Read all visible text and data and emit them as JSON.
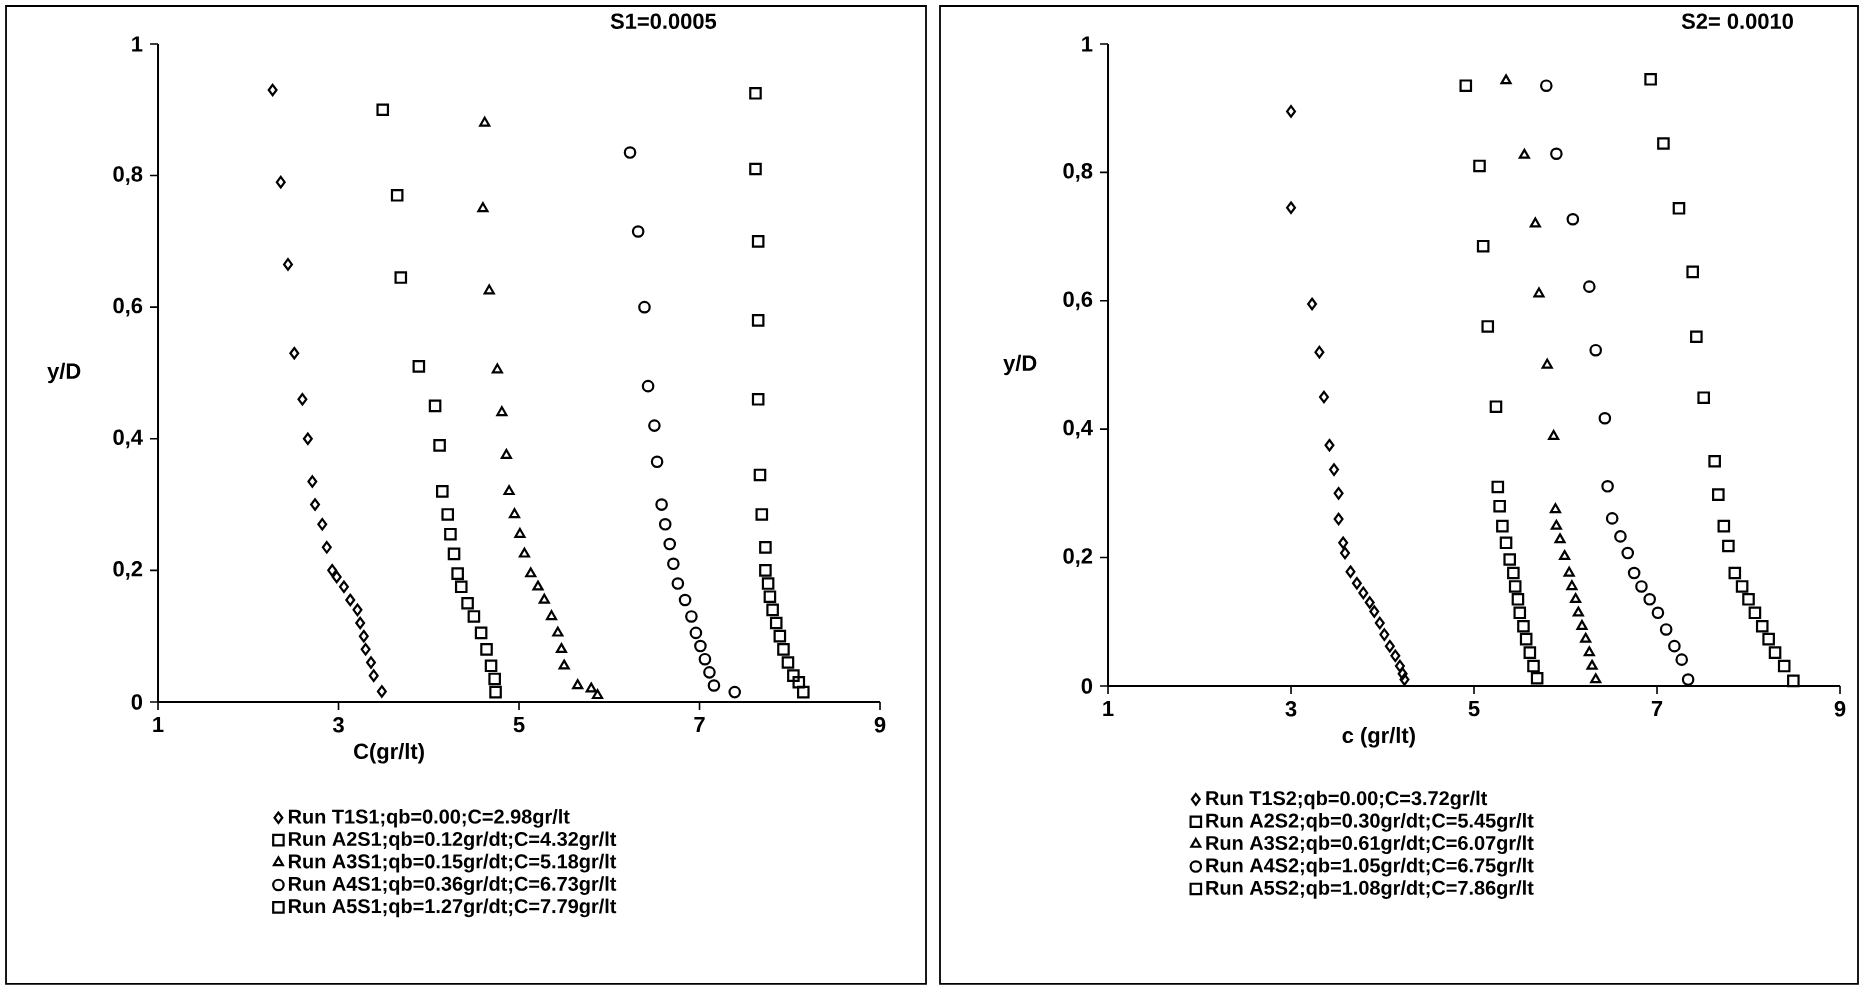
{
  "chart_data": [
    {
      "type": "scatter",
      "title": "S1=0.0005",
      "xlabel": "C(gr/lt)",
      "ylabel": "y/D",
      "legend": "bottom",
      "xlim": [
        1,
        9
      ],
      "ylim": [
        0,
        1
      ],
      "xticks": [
        1,
        3,
        5,
        7,
        9
      ],
      "yticks": [
        0,
        {
          "value": 0.2,
          "label": "0,2"
        },
        {
          "value": 0.4,
          "label": "0,4"
        },
        {
          "value": 0.6,
          "label": "0,6"
        },
        {
          "value": 0.8,
          "label": "0,8"
        },
        1
      ],
      "series": [
        {
          "name": "Run T1S1;qb=0.00;C=2.98gr/lt",
          "marker": "diamond",
          "color": "#000000",
          "x": [
            2.27,
            2.36,
            2.44,
            2.51,
            2.6,
            2.66,
            2.71,
            2.74,
            2.82,
            2.87,
            2.93,
            2.98,
            3.06,
            3.13,
            3.21,
            3.24,
            3.28,
            3.3,
            3.36,
            3.39,
            3.48
          ],
          "values": [
            0.93,
            0.79,
            0.665,
            0.53,
            0.46,
            0.4,
            0.335,
            0.3,
            0.27,
            0.235,
            0.2,
            0.19,
            0.175,
            0.155,
            0.14,
            0.12,
            0.1,
            0.08,
            0.06,
            0.04,
            0.016
          ]
        },
        {
          "name": "Run A2S1;qb=0.12gr/dt;C=4.32gr/lt",
          "marker": "square",
          "color": "#000000",
          "x": [
            3.49,
            3.65,
            3.69,
            3.89,
            4.07,
            4.12,
            4.15,
            4.21,
            4.24,
            4.28,
            4.32,
            4.36,
            4.43,
            4.5,
            4.58,
            4.64,
            4.69,
            4.73,
            4.74
          ],
          "values": [
            0.9,
            0.77,
            0.645,
            0.51,
            0.45,
            0.39,
            0.32,
            0.285,
            0.255,
            0.225,
            0.195,
            0.175,
            0.15,
            0.13,
            0.105,
            0.08,
            0.055,
            0.035,
            0.015
          ]
        },
        {
          "name": "Run A3S1;qb=0.15gr/dt;C=5.18gr/lt",
          "marker": "triangle",
          "color": "#000000",
          "x": [
            4.62,
            4.6,
            4.67,
            4.76,
            4.81,
            4.86,
            4.89,
            4.95,
            5.01,
            5.06,
            5.13,
            5.21,
            5.28,
            5.36,
            5.43,
            5.47,
            5.5,
            5.65,
            5.8,
            5.87
          ],
          "values": [
            0.88,
            0.75,
            0.625,
            0.505,
            0.44,
            0.375,
            0.32,
            0.285,
            0.255,
            0.225,
            0.195,
            0.175,
            0.155,
            0.13,
            0.105,
            0.08,
            0.055,
            0.025,
            0.02,
            0.01
          ]
        },
        {
          "name": "Run A4S1;qb=0.36gr/dt;C=6.73gr/lt",
          "marker": "circle",
          "color": "#000000",
          "x": [
            6.23,
            6.32,
            6.39,
            6.43,
            6.5,
            6.53,
            6.58,
            6.62,
            6.67,
            6.71,
            6.76,
            6.84,
            6.91,
            6.96,
            7.01,
            7.06,
            7.11,
            7.16,
            7.39
          ],
          "values": [
            0.835,
            0.715,
            0.6,
            0.48,
            0.42,
            0.365,
            0.3,
            0.27,
            0.24,
            0.21,
            0.18,
            0.155,
            0.13,
            0.105,
            0.085,
            0.065,
            0.045,
            0.025,
            0.015
          ]
        },
        {
          "name": "Run A5S1;qb=1.27gr/dt;C=7.79gr/lt",
          "marker": "square",
          "color": "#000000",
          "x": [
            7.62,
            7.62,
            7.65,
            7.65,
            7.65,
            7.67,
            7.69,
            7.73,
            7.73,
            7.76,
            7.78,
            7.81,
            7.85,
            7.89,
            7.93,
            7.98,
            8.04,
            8.1,
            8.15
          ],
          "values": [
            0.925,
            0.81,
            0.7,
            0.58,
            0.46,
            0.345,
            0.285,
            0.235,
            0.2,
            0.18,
            0.16,
            0.14,
            0.12,
            0.1,
            0.08,
            0.06,
            0.04,
            0.03,
            0.015
          ]
        }
      ]
    },
    {
      "type": "scatter",
      "title": "S2= 0.0010",
      "xlabel": "c (gr/lt)",
      "ylabel": "y/D",
      "legend": "bottom",
      "xlim": [
        1,
        9
      ],
      "ylim": [
        0,
        1
      ],
      "xticks": [
        1,
        3,
        5,
        7,
        9
      ],
      "yticks": [
        0,
        {
          "value": 0.2,
          "label": "0,2"
        },
        {
          "value": 0.4,
          "label": "0,4"
        },
        {
          "value": 0.6,
          "label": "0,6"
        },
        {
          "value": 0.8,
          "label": "0,8"
        },
        1
      ],
      "series": [
        {
          "name": "Run T1S2;qb=0.00;C=3.72gr/lt",
          "marker": "diamond",
          "color": "#000000",
          "x": [
            3.0,
            3.0,
            3.23,
            3.31,
            3.36,
            3.42,
            3.47,
            3.52,
            3.52,
            3.57,
            3.59,
            3.65,
            3.72,
            3.79,
            3.86,
            3.91,
            3.97,
            4.02,
            4.08,
            4.14,
            4.19,
            4.22,
            4.24
          ],
          "values": [
            0.895,
            0.745,
            0.595,
            0.52,
            0.45,
            0.375,
            0.337,
            0.3,
            0.26,
            0.223,
            0.207,
            0.178,
            0.16,
            0.145,
            0.13,
            0.116,
            0.098,
            0.08,
            0.062,
            0.047,
            0.031,
            0.019,
            0.01
          ]
        },
        {
          "name": "Run A2S2;qb=0.30gr/dt;C=5.45gr/lt",
          "marker": "square",
          "color": "#000000",
          "x": [
            4.91,
            5.06,
            5.1,
            5.15,
            5.24,
            5.26,
            5.28,
            5.31,
            5.35,
            5.39,
            5.43,
            5.45,
            5.48,
            5.5,
            5.54,
            5.57,
            5.61,
            5.65,
            5.69
          ],
          "values": [
            0.935,
            0.81,
            0.685,
            0.56,
            0.435,
            0.31,
            0.28,
            0.249,
            0.223,
            0.197,
            0.176,
            0.155,
            0.135,
            0.114,
            0.093,
            0.073,
            0.052,
            0.031,
            0.012
          ]
        },
        {
          "name": "Run A3S2;qb=0.61gr/dt;C=6.07gr/lt",
          "marker": "triangle",
          "color": "#000000",
          "x": [
            5.35,
            5.55,
            5.67,
            5.71,
            5.8,
            5.87,
            5.89,
            5.9,
            5.94,
            5.99,
            6.04,
            6.07,
            6.11,
            6.14,
            6.18,
            6.22,
            6.26,
            6.29,
            6.33
          ],
          "values": [
            0.943,
            0.827,
            0.72,
            0.611,
            0.5,
            0.389,
            0.275,
            0.249,
            0.228,
            0.202,
            0.176,
            0.155,
            0.135,
            0.114,
            0.093,
            0.073,
            0.052,
            0.031,
            0.01
          ]
        },
        {
          "name": "Run A4S2;qb=1.05gr/dt;C=6.75gr/lt",
          "marker": "circle",
          "color": "#000000",
          "x": [
            5.79,
            5.9,
            6.08,
            6.26,
            6.33,
            6.43,
            6.46,
            6.51,
            6.6,
            6.68,
            6.75,
            6.83,
            6.92,
            7.01,
            7.1,
            7.19,
            7.27,
            7.34
          ],
          "values": [
            0.935,
            0.829,
            0.727,
            0.622,
            0.523,
            0.417,
            0.311,
            0.261,
            0.233,
            0.207,
            0.176,
            0.155,
            0.135,
            0.114,
            0.088,
            0.062,
            0.041,
            0.01
          ]
        },
        {
          "name": "Run A5S2;qb=1.08gr/dt;C=7.86gr/lt",
          "marker": "square",
          "color": "#000000",
          "x": [
            6.93,
            7.07,
            7.24,
            7.39,
            7.43,
            7.51,
            7.63,
            7.67,
            7.73,
            7.78,
            7.85,
            7.93,
            8.0,
            8.07,
            8.15,
            8.22,
            8.29,
            8.39,
            8.49
          ],
          "values": [
            0.945,
            0.845,
            0.744,
            0.645,
            0.544,
            0.449,
            0.35,
            0.298,
            0.249,
            0.218,
            0.176,
            0.155,
            0.135,
            0.114,
            0.093,
            0.073,
            0.052,
            0.031,
            0.008
          ]
        }
      ]
    }
  ]
}
